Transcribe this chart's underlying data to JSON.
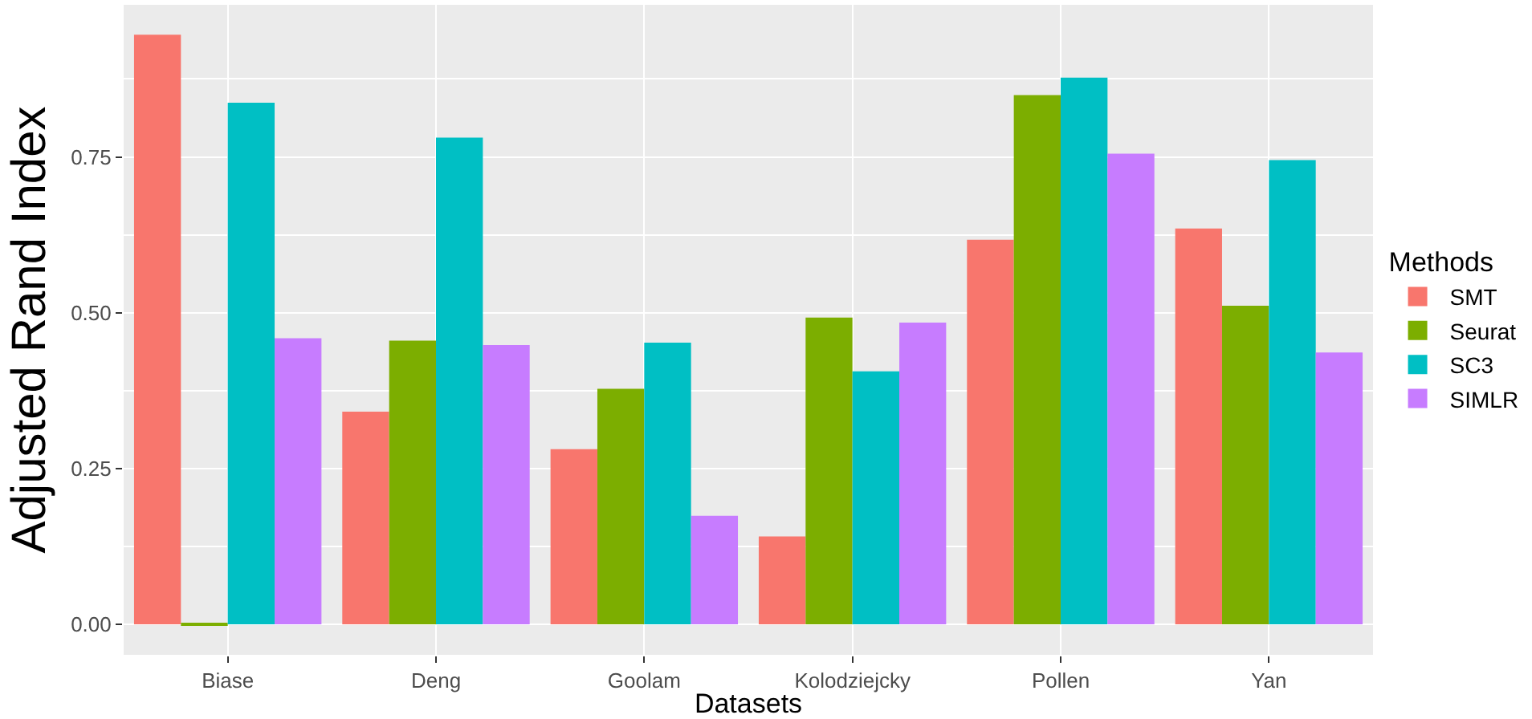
{
  "chart_data": {
    "type": "bar",
    "xlabel": "Datasets",
    "ylabel": "Adjusted Rand Index",
    "legend_title": "Methods",
    "legend": "right",
    "grid": true,
    "categories": [
      "Biase",
      "Deng",
      "Goolam",
      "Kolodziejcky",
      "Pollen",
      "Yan"
    ],
    "ylim": [
      -0.049,
      0.994
    ],
    "yticks": [
      {
        "value": 0,
        "label": "0.00"
      },
      {
        "value": 0.25,
        "label": "0.25"
      },
      {
        "value": 0.5,
        "label": "0.50"
      },
      {
        "value": 0.75,
        "label": "0.75"
      }
    ],
    "series": [
      {
        "name": "SMT",
        "color": "#f8766d",
        "values": [
          0.946,
          0.341,
          0.281,
          0.141,
          0.617,
          0.635
        ]
      },
      {
        "name": "Seurat",
        "color": "#7cae00",
        "values": [
          -0.002,
          0.455,
          0.378,
          0.492,
          0.849,
          0.511
        ]
      },
      {
        "name": "SC3",
        "color": "#00bfc4",
        "values": [
          0.837,
          0.781,
          0.452,
          0.406,
          0.877,
          0.745
        ]
      },
      {
        "name": "SIMLR",
        "color": "#c77cff",
        "values": [
          0.459,
          0.448,
          0.174,
          0.484,
          0.755,
          0.436
        ]
      }
    ]
  }
}
